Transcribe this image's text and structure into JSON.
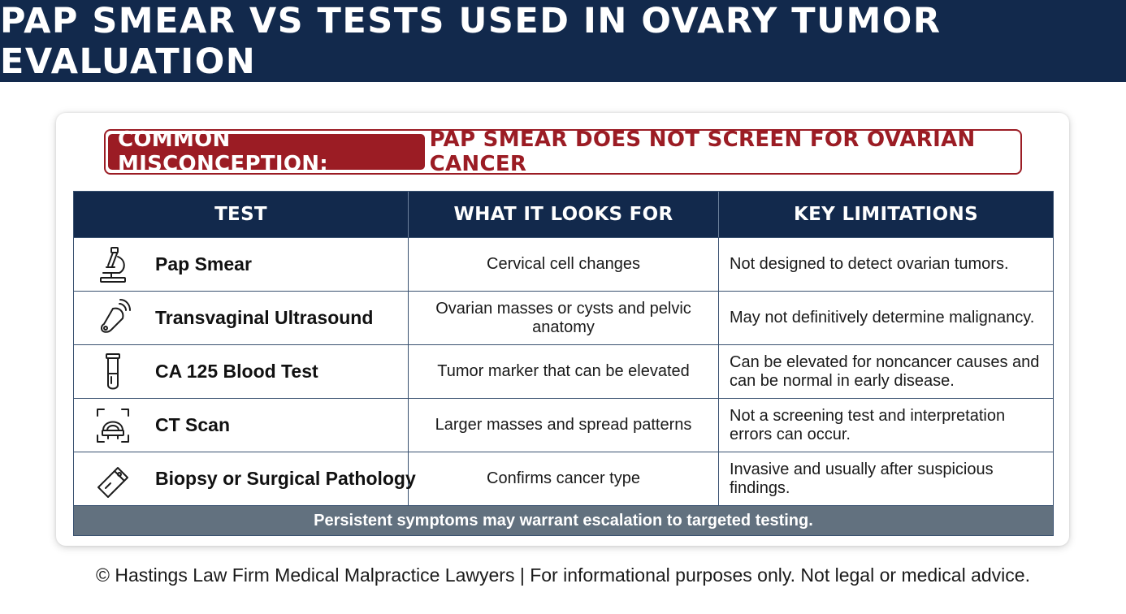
{
  "header": {
    "title": "PAP SMEAR VS TESTS USED IN OVARY TUMOR EVALUATION"
  },
  "misconception": {
    "tag": "COMMON MISCONCEPTION:",
    "text": "PAP SMEAR DOES NOT SCREEN FOR OVARIAN CANCER"
  },
  "table": {
    "headers": [
      "TEST",
      "WHAT IT LOOKS FOR",
      "KEY LIMITATIONS"
    ],
    "rows": [
      {
        "icon": "microscope-icon",
        "test": "Pap Smear",
        "looks_for": "Cervical cell changes",
        "limitations": "Not designed to detect ovarian tumors."
      },
      {
        "icon": "ultrasound-probe-icon",
        "test": "Transvaginal Ultrasound",
        "looks_for": "Ovarian masses or cysts and pelvic anatomy",
        "limitations": "May not definitively determine malignancy."
      },
      {
        "icon": "test-tube-icon",
        "test": "CA 125 Blood Test",
        "looks_for": "Tumor marker that can be elevated",
        "limitations": "Can be elevated for noncancer causes and can be normal in early disease."
      },
      {
        "icon": "ct-scanner-icon",
        "test": "CT Scan",
        "looks_for": "Larger masses and spread patterns",
        "limitations": "Not a screening test and interpretation errors can occur."
      },
      {
        "icon": "biopsy-slide-icon",
        "test": "Biopsy or Surgical Pathology",
        "looks_for": "Confirms cancer type",
        "limitations": "Invasive and usually after suspicious findings."
      }
    ],
    "footer": "Persistent symptoms may warrant escalation to targeted testing."
  },
  "copyright": "© Hastings Law Firm Medical Malpractice Lawyers | For informational purposes only. Not legal or medical advice.",
  "colors": {
    "navy": "#12294c",
    "accent_red": "#9b1c24",
    "footer_gray": "#62717f"
  }
}
